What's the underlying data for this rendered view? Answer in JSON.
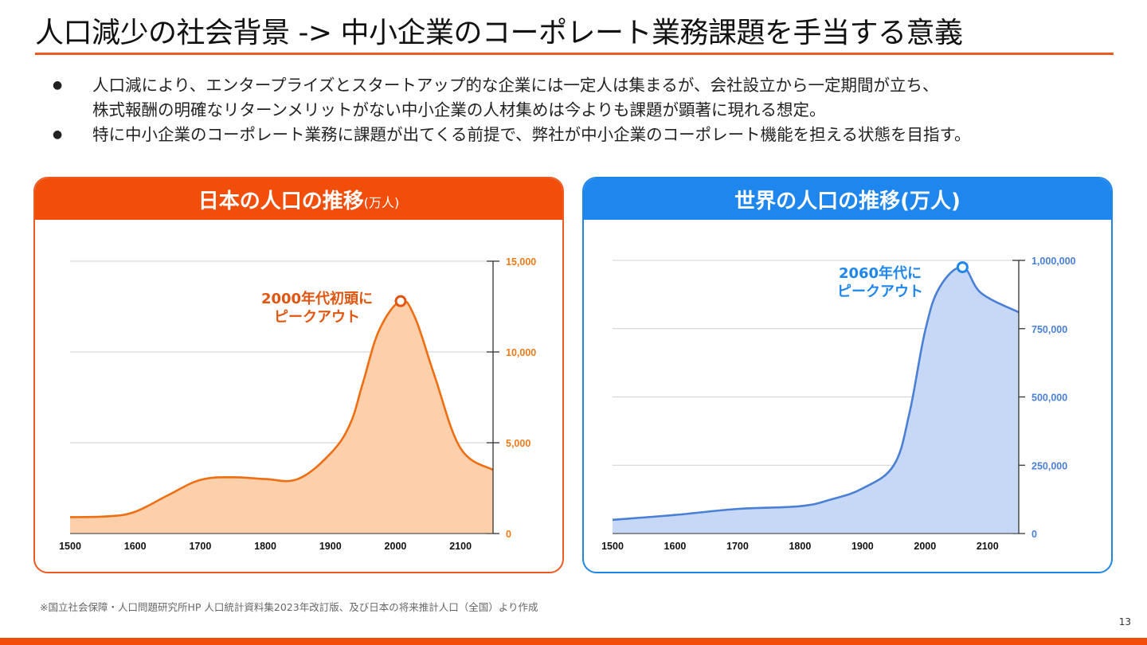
{
  "slide": {
    "title": "人口減少の社会背景 -> 中小企業のコーポレート業務課題を手当する意義",
    "bullets": [
      {
        "lines": [
          "人口減により、エンタープライズとスタートアップ的な企業には一定人は集まるが、会社設立から一定期間が立ち、",
          "株式報酬の明確なリターンメリットがない中小企業の人材集めは今よりも課題が顕著に現れる想定。"
        ]
      },
      {
        "lines": [
          "特に中小企業のコーポレート業務に課題が出てくる前提で、弊社が中小企業のコーポレート機能を担える状態を目指す。"
        ]
      }
    ],
    "bullet_icon": "●",
    "footnote": "※国立社会保障・人口問題研究所HP 人口統計資料集2023年改訂版、及び日本の将来推計人口（全国）より作成",
    "page_number": "13",
    "colors": {
      "accent_orange": "#f04e0a",
      "accent_blue": "#1e86ec"
    }
  },
  "panels": {
    "japan": {
      "title_main": "日本の人口の推移",
      "title_unit": "(万人)"
    },
    "world": {
      "title_main": "世界の人口の推移(万人)"
    }
  },
  "chart_data": [
    {
      "type": "area",
      "title": "日本の人口の推移(万人)",
      "xlabel": "",
      "ylabel": "万人",
      "x_ticks": [
        "1500",
        "1600",
        "1700",
        "1800",
        "1900",
        "2000",
        "2100"
      ],
      "y_ticks": [
        "0",
        "5,000",
        "10,000",
        "15,000"
      ],
      "xlim": [
        1500,
        2150
      ],
      "ylim": [
        0,
        15000
      ],
      "grid": true,
      "y_axis_side": "right",
      "series": [
        {
          "name": "日本の人口",
          "x": [
            1500,
            1560,
            1600,
            1650,
            1700,
            1750,
            1800,
            1850,
            1900,
            1930,
            1950,
            1975,
            2008,
            2030,
            2060,
            2100,
            2150
          ],
          "values": [
            900,
            950,
            1200,
            2100,
            2950,
            3100,
            3000,
            3000,
            4400,
            6000,
            8300,
            11200,
            12800,
            11900,
            8700,
            4700,
            3500
          ]
        }
      ],
      "annotation": {
        "x": 2008,
        "y": 12800,
        "text_lines": [
          "2000年代初頭に",
          "ピークアウト"
        ]
      },
      "colors": {
        "line": "#ee6e12",
        "fill": "#fdcfaa",
        "label": "#e0550f",
        "tick_label": "#ee7a1a"
      }
    },
    {
      "type": "area",
      "title": "世界の人口の推移(万人)",
      "xlabel": "",
      "ylabel": "万人",
      "x_ticks": [
        "1500",
        "1600",
        "1700",
        "1800",
        "1900",
        "2000",
        "2100"
      ],
      "y_ticks": [
        "0",
        "250,000",
        "500,000",
        "750,000",
        "1,000,000"
      ],
      "xlim": [
        1500,
        2150
      ],
      "ylim": [
        0,
        1000000
      ],
      "grid": true,
      "y_axis_side": "right",
      "series": [
        {
          "name": "世界の人口",
          "x": [
            1500,
            1600,
            1700,
            1800,
            1850,
            1900,
            1950,
            1975,
            2000,
            2023,
            2060,
            2090,
            2150
          ],
          "values": [
            50000,
            68000,
            90000,
            100000,
            125000,
            165000,
            250000,
            440000,
            740000,
            900000,
            975000,
            880000,
            810000
          ]
        }
      ],
      "annotation": {
        "x": 2060,
        "y": 975000,
        "text_lines": [
          "2060年代に",
          "ピークアウト"
        ]
      },
      "colors": {
        "line": "#4a7fd6",
        "fill": "#c6d8f5",
        "label": "#1e86ec",
        "tick_label": "#4a7fd6"
      }
    }
  ]
}
